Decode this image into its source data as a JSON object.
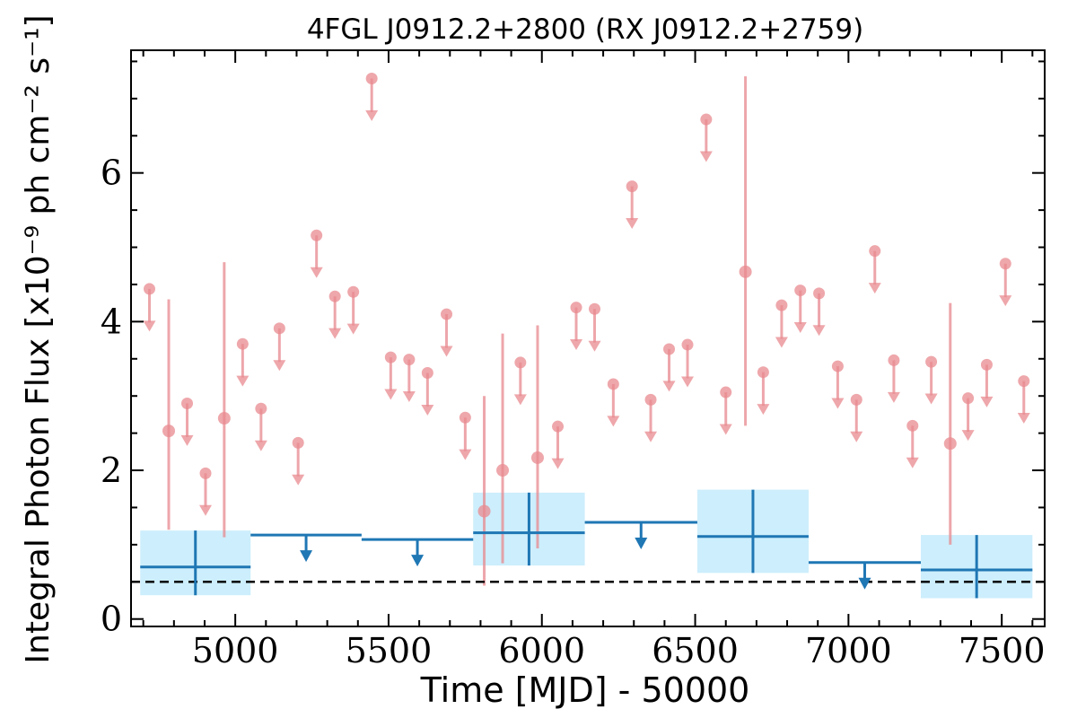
{
  "chart_data": {
    "type": "scatter",
    "title": "4FGL J0912.2+2800 (RX J0912.2+2759)",
    "xlabel": "Time [MJD] - 50000",
    "ylabel": "Integral Photon Flux [x10⁻⁹ ph cm⁻² s⁻¹]",
    "xlim": [
      4660,
      7640
    ],
    "ylim": [
      -0.1,
      7.65
    ],
    "xticks": [
      5000,
      5500,
      6000,
      6500,
      7000,
      7500
    ],
    "yticks": [
      0,
      2,
      4,
      6
    ],
    "grid": false,
    "reference_line": {
      "y": 0.5,
      "style": "dashed",
      "color": "#000000"
    },
    "colors": {
      "short_bins": "#e8898f",
      "long_bins": "#1f77b4",
      "long_bins_band": "#cdeefc"
    },
    "series": [
      {
        "kind": "short_bins_detections",
        "points": [
          {
            "x": 4783,
            "y": 2.53,
            "ylo": 1.2,
            "yhi": 4.3
          },
          {
            "x": 4964,
            "y": 2.7,
            "ylo": 1.1,
            "yhi": 4.8
          },
          {
            "x": 5812,
            "y": 1.45,
            "ylo": 0.45,
            "yhi": 3.0
          },
          {
            "x": 5872,
            "y": 2.0,
            "ylo": 0.75,
            "yhi": 3.84
          },
          {
            "x": 5986,
            "y": 2.17,
            "ylo": 0.95,
            "yhi": 3.95
          },
          {
            "x": 6664,
            "y": 4.67,
            "ylo": 2.6,
            "yhi": 7.3
          },
          {
            "x": 7332,
            "y": 2.36,
            "ylo": 1.0,
            "yhi": 4.25
          }
        ]
      },
      {
        "kind": "short_bins_upper_limits",
        "points": [
          {
            "x": 4720,
            "y": 4.44
          },
          {
            "x": 4843,
            "y": 2.9
          },
          {
            "x": 4903,
            "y": 1.96
          },
          {
            "x": 5024,
            "y": 3.7
          },
          {
            "x": 5084,
            "y": 2.83
          },
          {
            "x": 5144,
            "y": 3.91
          },
          {
            "x": 5205,
            "y": 2.37
          },
          {
            "x": 5265,
            "y": 5.16
          },
          {
            "x": 5325,
            "y": 4.34
          },
          {
            "x": 5385,
            "y": 4.4
          },
          {
            "x": 5445,
            "y": 7.27
          },
          {
            "x": 5507,
            "y": 3.52
          },
          {
            "x": 5567,
            "y": 3.49
          },
          {
            "x": 5627,
            "y": 3.31
          },
          {
            "x": 5689,
            "y": 4.1
          },
          {
            "x": 5750,
            "y": 2.71
          },
          {
            "x": 5930,
            "y": 3.45
          },
          {
            "x": 6052,
            "y": 2.59
          },
          {
            "x": 6112,
            "y": 4.19
          },
          {
            "x": 6172,
            "y": 4.17
          },
          {
            "x": 6233,
            "y": 3.16
          },
          {
            "x": 6294,
            "y": 5.82
          },
          {
            "x": 6355,
            "y": 2.95
          },
          {
            "x": 6415,
            "y": 3.63
          },
          {
            "x": 6475,
            "y": 3.69
          },
          {
            "x": 6536,
            "y": 6.72
          },
          {
            "x": 6600,
            "y": 3.05
          },
          {
            "x": 6722,
            "y": 3.32
          },
          {
            "x": 6782,
            "y": 4.22
          },
          {
            "x": 6843,
            "y": 4.42
          },
          {
            "x": 6904,
            "y": 4.38
          },
          {
            "x": 6965,
            "y": 3.4
          },
          {
            "x": 7026,
            "y": 2.95
          },
          {
            "x": 7086,
            "y": 4.95
          },
          {
            "x": 7148,
            "y": 3.48
          },
          {
            "x": 7209,
            "y": 2.6
          },
          {
            "x": 7270,
            "y": 3.46
          },
          {
            "x": 7390,
            "y": 2.97
          },
          {
            "x": 7451,
            "y": 3.42
          },
          {
            "x": 7512,
            "y": 4.78
          },
          {
            "x": 7572,
            "y": 3.2
          }
        ]
      },
      {
        "kind": "long_bins_detections",
        "points": [
          {
            "x0": 4690,
            "x1": 5050,
            "y": 0.7,
            "ylo": 0.32,
            "yhi": 1.19
          },
          {
            "x0": 5776,
            "x1": 6140,
            "y": 1.16,
            "ylo": 0.72,
            "yhi": 1.7
          },
          {
            "x0": 6507,
            "x1": 6870,
            "y": 1.11,
            "ylo": 0.62,
            "yhi": 1.74
          },
          {
            "x0": 7236,
            "x1": 7600,
            "y": 0.66,
            "ylo": 0.28,
            "yhi": 1.13
          }
        ]
      },
      {
        "kind": "long_bins_upper_limits",
        "points": [
          {
            "x0": 5050,
            "x1": 5412,
            "y": 1.13
          },
          {
            "x0": 5412,
            "x1": 5776,
            "y": 1.07
          },
          {
            "x0": 6140,
            "x1": 6507,
            "y": 1.3
          },
          {
            "x0": 6870,
            "x1": 7236,
            "y": 0.76
          }
        ]
      }
    ]
  }
}
